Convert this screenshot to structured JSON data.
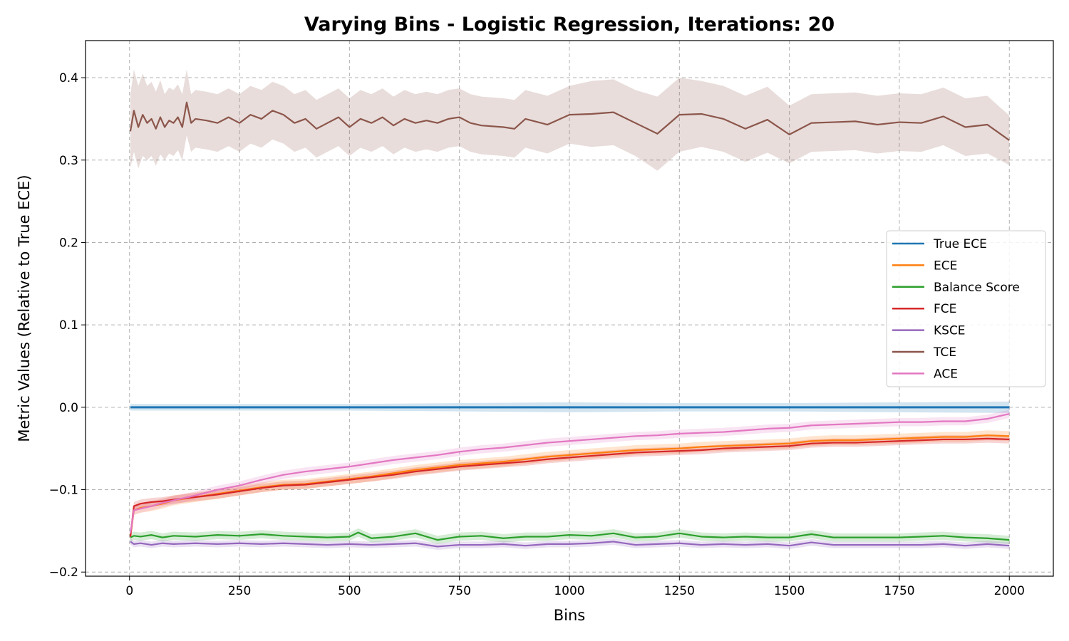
{
  "chart_data": {
    "type": "line",
    "title": "Varying Bins - Logistic Regression, Iterations: 20",
    "xlabel": "Bins",
    "ylabel": "Metric Values (Relative to True ECE)",
    "xlim": [
      -100,
      2100
    ],
    "ylim": [
      -0.205,
      0.445
    ],
    "xticks": [
      0,
      250,
      500,
      750,
      1000,
      1250,
      1500,
      1750,
      2000
    ],
    "xtick_labels": [
      "0",
      "250",
      "500",
      "750",
      "1000",
      "1250",
      "1500",
      "1750",
      "2000"
    ],
    "yticks": [
      -0.2,
      -0.1,
      0.0,
      0.1,
      0.2,
      0.3,
      0.4
    ],
    "ytick_labels": [
      "−0.2",
      "−0.1",
      "0.0",
      "0.1",
      "0.2",
      "0.3",
      "0.4"
    ],
    "grid": true,
    "legend_position": "center-right",
    "shaded_band": "std deviation band around each series",
    "series": [
      {
        "name": "True ECE",
        "color": "#1f77b4",
        "x": [
          2,
          250,
          500,
          750,
          1000,
          1250,
          1500,
          1750,
          2000
        ],
        "y": [
          0.0,
          0.0,
          0.0,
          0.0,
          0.0,
          0.0,
          0.0,
          0.0,
          0.0
        ],
        "band": [
          0.004,
          0.004,
          0.004,
          0.005,
          0.006,
          0.005,
          0.005,
          0.006,
          0.007
        ]
      },
      {
        "name": "ECE",
        "color": "#ff7f0e",
        "x": [
          2,
          10,
          25,
          50,
          75,
          100,
          150,
          200,
          250,
          300,
          350,
          400,
          450,
          500,
          550,
          600,
          650,
          700,
          750,
          800,
          850,
          900,
          950,
          1000,
          1050,
          1100,
          1150,
          1200,
          1250,
          1300,
          1350,
          1400,
          1450,
          1500,
          1550,
          1600,
          1650,
          1700,
          1750,
          1800,
          1850,
          1900,
          1950,
          2000
        ],
        "y": [
          -0.157,
          -0.125,
          -0.122,
          -0.12,
          -0.117,
          -0.113,
          -0.109,
          -0.105,
          -0.101,
          -0.097,
          -0.094,
          -0.093,
          -0.09,
          -0.087,
          -0.084,
          -0.08,
          -0.076,
          -0.073,
          -0.07,
          -0.068,
          -0.066,
          -0.063,
          -0.06,
          -0.058,
          -0.056,
          -0.054,
          -0.052,
          -0.051,
          -0.05,
          -0.048,
          -0.047,
          -0.046,
          -0.045,
          -0.044,
          -0.041,
          -0.04,
          -0.04,
          -0.039,
          -0.038,
          -0.037,
          -0.036,
          -0.036,
          -0.034,
          -0.035
        ],
        "band": [
          0.006,
          0.006,
          0.006,
          0.006,
          0.006,
          0.006,
          0.006,
          0.006,
          0.006,
          0.006,
          0.006,
          0.006,
          0.006,
          0.006,
          0.006,
          0.006,
          0.006,
          0.006,
          0.006,
          0.006,
          0.006,
          0.006,
          0.006,
          0.006,
          0.006,
          0.006,
          0.006,
          0.006,
          0.006,
          0.006,
          0.006,
          0.006,
          0.006,
          0.006,
          0.006,
          0.006,
          0.006,
          0.006,
          0.006,
          0.006,
          0.006,
          0.006,
          0.006,
          0.006
        ]
      },
      {
        "name": "Balance Score",
        "color": "#2ca02c",
        "x": [
          2,
          10,
          25,
          50,
          75,
          100,
          150,
          200,
          250,
          300,
          350,
          400,
          450,
          500,
          520,
          550,
          600,
          650,
          700,
          750,
          800,
          850,
          900,
          950,
          1000,
          1050,
          1100,
          1150,
          1200,
          1250,
          1300,
          1350,
          1400,
          1450,
          1500,
          1550,
          1600,
          1650,
          1700,
          1750,
          1800,
          1850,
          1900,
          1950,
          2000
        ],
        "y": [
          -0.158,
          -0.156,
          -0.157,
          -0.155,
          -0.158,
          -0.156,
          -0.157,
          -0.155,
          -0.156,
          -0.154,
          -0.156,
          -0.157,
          -0.158,
          -0.157,
          -0.152,
          -0.159,
          -0.157,
          -0.153,
          -0.161,
          -0.157,
          -0.156,
          -0.159,
          -0.157,
          -0.157,
          -0.155,
          -0.156,
          -0.153,
          -0.158,
          -0.157,
          -0.153,
          -0.157,
          -0.158,
          -0.157,
          -0.158,
          -0.158,
          -0.154,
          -0.158,
          -0.158,
          -0.158,
          -0.158,
          -0.157,
          -0.156,
          -0.158,
          -0.159,
          -0.161
        ],
        "band": [
          0.005,
          0.005,
          0.005,
          0.005,
          0.005,
          0.005,
          0.005,
          0.005,
          0.005,
          0.005,
          0.005,
          0.005,
          0.005,
          0.005,
          0.005,
          0.005,
          0.005,
          0.005,
          0.005,
          0.005,
          0.005,
          0.005,
          0.005,
          0.005,
          0.005,
          0.005,
          0.005,
          0.005,
          0.005,
          0.005,
          0.005,
          0.005,
          0.005,
          0.005,
          0.005,
          0.005,
          0.005,
          0.005,
          0.005,
          0.005,
          0.005,
          0.005,
          0.005,
          0.005,
          0.005
        ]
      },
      {
        "name": "FCE",
        "color": "#d62728",
        "x": [
          2,
          10,
          25,
          50,
          75,
          100,
          150,
          200,
          250,
          300,
          350,
          400,
          450,
          500,
          550,
          600,
          650,
          700,
          750,
          800,
          850,
          900,
          950,
          1000,
          1050,
          1100,
          1150,
          1200,
          1250,
          1300,
          1350,
          1400,
          1450,
          1500,
          1550,
          1600,
          1650,
          1700,
          1750,
          1800,
          1850,
          1900,
          1950,
          2000
        ],
        "y": [
          -0.157,
          -0.12,
          -0.117,
          -0.115,
          -0.114,
          -0.112,
          -0.109,
          -0.106,
          -0.102,
          -0.098,
          -0.095,
          -0.094,
          -0.091,
          -0.088,
          -0.085,
          -0.082,
          -0.078,
          -0.075,
          -0.072,
          -0.07,
          -0.068,
          -0.066,
          -0.063,
          -0.061,
          -0.059,
          -0.057,
          -0.055,
          -0.054,
          -0.053,
          -0.052,
          -0.05,
          -0.049,
          -0.048,
          -0.047,
          -0.044,
          -0.043,
          -0.043,
          -0.042,
          -0.041,
          -0.04,
          -0.039,
          -0.039,
          -0.038,
          -0.039
        ],
        "band": [
          0.005,
          0.005,
          0.005,
          0.005,
          0.005,
          0.005,
          0.005,
          0.005,
          0.005,
          0.005,
          0.005,
          0.005,
          0.005,
          0.005,
          0.005,
          0.005,
          0.005,
          0.005,
          0.005,
          0.005,
          0.005,
          0.005,
          0.005,
          0.005,
          0.005,
          0.005,
          0.005,
          0.005,
          0.005,
          0.005,
          0.005,
          0.005,
          0.005,
          0.005,
          0.005,
          0.005,
          0.005,
          0.005,
          0.005,
          0.005,
          0.005,
          0.005,
          0.005,
          0.005
        ]
      },
      {
        "name": "KSCE",
        "color": "#9467bd",
        "x": [
          2,
          10,
          25,
          50,
          75,
          100,
          150,
          200,
          250,
          300,
          350,
          400,
          450,
          500,
          550,
          600,
          650,
          700,
          750,
          800,
          850,
          900,
          950,
          1000,
          1050,
          1100,
          1150,
          1200,
          1250,
          1300,
          1350,
          1400,
          1450,
          1500,
          1550,
          1600,
          1650,
          1700,
          1750,
          1800,
          1850,
          1900,
          1950,
          2000
        ],
        "y": [
          -0.163,
          -0.166,
          -0.165,
          -0.167,
          -0.165,
          -0.166,
          -0.165,
          -0.166,
          -0.165,
          -0.166,
          -0.165,
          -0.166,
          -0.167,
          -0.166,
          -0.167,
          -0.166,
          -0.165,
          -0.169,
          -0.167,
          -0.167,
          -0.166,
          -0.168,
          -0.166,
          -0.166,
          -0.165,
          -0.163,
          -0.167,
          -0.166,
          -0.165,
          -0.167,
          -0.166,
          -0.167,
          -0.166,
          -0.168,
          -0.164,
          -0.167,
          -0.167,
          -0.167,
          -0.167,
          -0.167,
          -0.166,
          -0.168,
          -0.166,
          -0.168
        ],
        "band": [
          0.004,
          0.004,
          0.004,
          0.004,
          0.004,
          0.004,
          0.004,
          0.004,
          0.004,
          0.004,
          0.004,
          0.004,
          0.004,
          0.004,
          0.004,
          0.004,
          0.004,
          0.004,
          0.004,
          0.004,
          0.004,
          0.004,
          0.004,
          0.004,
          0.004,
          0.004,
          0.004,
          0.004,
          0.004,
          0.004,
          0.004,
          0.004,
          0.004,
          0.004,
          0.004,
          0.004,
          0.004,
          0.004,
          0.004,
          0.004,
          0.004,
          0.004,
          0.004,
          0.004
        ]
      },
      {
        "name": "TCE",
        "color": "#8c564b",
        "x": [
          2,
          10,
          20,
          30,
          40,
          50,
          60,
          70,
          80,
          90,
          100,
          110,
          120,
          130,
          140,
          150,
          175,
          200,
          225,
          250,
          275,
          300,
          325,
          350,
          375,
          400,
          425,
          450,
          475,
          500,
          525,
          550,
          575,
          600,
          625,
          650,
          675,
          700,
          725,
          750,
          775,
          800,
          850,
          875,
          900,
          950,
          1000,
          1050,
          1100,
          1150,
          1200,
          1250,
          1300,
          1350,
          1400,
          1450,
          1500,
          1550,
          1600,
          1650,
          1700,
          1750,
          1800,
          1850,
          1900,
          1950,
          2000
        ],
        "y": [
          0.335,
          0.36,
          0.34,
          0.355,
          0.345,
          0.35,
          0.338,
          0.352,
          0.34,
          0.348,
          0.345,
          0.352,
          0.34,
          0.37,
          0.345,
          0.35,
          0.348,
          0.345,
          0.352,
          0.345,
          0.355,
          0.35,
          0.36,
          0.355,
          0.345,
          0.35,
          0.338,
          0.345,
          0.352,
          0.34,
          0.35,
          0.345,
          0.352,
          0.342,
          0.35,
          0.345,
          0.348,
          0.345,
          0.35,
          0.352,
          0.345,
          0.342,
          0.34,
          0.338,
          0.35,
          0.343,
          0.355,
          0.356,
          0.358,
          0.345,
          0.332,
          0.355,
          0.356,
          0.35,
          0.338,
          0.349,
          0.331,
          0.345,
          0.346,
          0.347,
          0.343,
          0.346,
          0.345,
          0.353,
          0.34,
          0.343,
          0.324
        ],
        "band": [
          0.045,
          0.05,
          0.05,
          0.05,
          0.045,
          0.045,
          0.045,
          0.045,
          0.04,
          0.04,
          0.04,
          0.04,
          0.04,
          0.04,
          0.035,
          0.035,
          0.035,
          0.035,
          0.035,
          0.035,
          0.035,
          0.035,
          0.035,
          0.035,
          0.035,
          0.035,
          0.035,
          0.035,
          0.035,
          0.035,
          0.035,
          0.035,
          0.035,
          0.035,
          0.035,
          0.035,
          0.035,
          0.035,
          0.035,
          0.035,
          0.035,
          0.035,
          0.035,
          0.035,
          0.035,
          0.035,
          0.035,
          0.04,
          0.04,
          0.04,
          0.045,
          0.045,
          0.04,
          0.04,
          0.04,
          0.04,
          0.035,
          0.035,
          0.035,
          0.035,
          0.035,
          0.035,
          0.035,
          0.035,
          0.035,
          0.035,
          0.03
        ]
      },
      {
        "name": "ACE",
        "color": "#e377c2",
        "x": [
          2,
          10,
          25,
          50,
          75,
          100,
          150,
          200,
          250,
          300,
          350,
          400,
          450,
          500,
          550,
          600,
          650,
          700,
          750,
          800,
          850,
          900,
          950,
          1000,
          1050,
          1100,
          1150,
          1200,
          1250,
          1300,
          1350,
          1400,
          1450,
          1500,
          1550,
          1600,
          1650,
          1700,
          1750,
          1800,
          1850,
          1900,
          1950,
          2000
        ],
        "y": [
          -0.153,
          -0.125,
          -0.123,
          -0.12,
          -0.116,
          -0.113,
          -0.107,
          -0.1,
          -0.095,
          -0.088,
          -0.082,
          -0.078,
          -0.075,
          -0.072,
          -0.068,
          -0.064,
          -0.061,
          -0.058,
          -0.054,
          -0.051,
          -0.049,
          -0.046,
          -0.043,
          -0.041,
          -0.039,
          -0.037,
          -0.035,
          -0.034,
          -0.032,
          -0.031,
          -0.03,
          -0.028,
          -0.026,
          -0.025,
          -0.022,
          -0.021,
          -0.02,
          -0.019,
          -0.018,
          -0.018,
          -0.017,
          -0.017,
          -0.014,
          -0.008
        ],
        "band": [
          0.005,
          0.005,
          0.005,
          0.005,
          0.005,
          0.005,
          0.005,
          0.005,
          0.005,
          0.005,
          0.005,
          0.005,
          0.005,
          0.005,
          0.005,
          0.005,
          0.005,
          0.005,
          0.005,
          0.005,
          0.005,
          0.005,
          0.005,
          0.005,
          0.005,
          0.005,
          0.005,
          0.005,
          0.005,
          0.005,
          0.005,
          0.005,
          0.005,
          0.005,
          0.005,
          0.005,
          0.005,
          0.005,
          0.005,
          0.005,
          0.005,
          0.005,
          0.005,
          0.005
        ]
      }
    ]
  }
}
